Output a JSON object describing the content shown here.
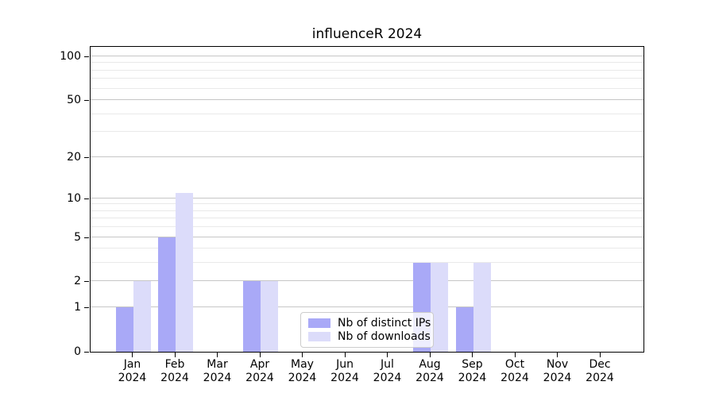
{
  "chart_data": {
    "type": "bar",
    "title": "influenceR 2024",
    "x_months": [
      "Jan",
      "Feb",
      "Mar",
      "Apr",
      "May",
      "Jun",
      "Jul",
      "Aug",
      "Sep",
      "Oct",
      "Nov",
      "Dec"
    ],
    "x_year": "2024",
    "series": [
      {
        "name": "Nb of distinct IPs",
        "color": "#a9a9f7",
        "values": [
          1,
          5,
          0,
          2,
          0,
          0,
          0,
          3,
          1,
          0,
          0,
          0
        ]
      },
      {
        "name": "Nb of downloads",
        "color": "#dcdcfa",
        "values": [
          2,
          11,
          0,
          2,
          0,
          0,
          0,
          3,
          3,
          0,
          0,
          0
        ]
      }
    ],
    "yscale": "log1p",
    "ylim": [
      0,
      100
    ],
    "y_major_ticks": [
      0,
      1,
      2,
      5,
      10,
      20,
      50,
      100
    ],
    "y_minor_gridlines": [
      3,
      4,
      6,
      7,
      8,
      9,
      30,
      40,
      60,
      70,
      80,
      90
    ],
    "grid": "horizontal-only",
    "legend_position": "lower-center"
  },
  "colors": {
    "major_grid": "#c6c6c6",
    "minor_grid": "#e9e9e9",
    "axis": "#000000",
    "background": "#ffffff"
  }
}
